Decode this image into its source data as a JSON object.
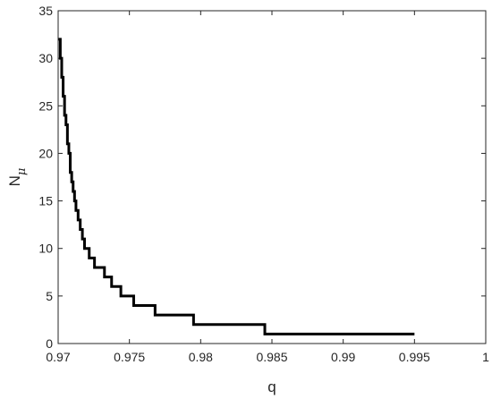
{
  "chart_data": {
    "type": "line",
    "title": "",
    "xlabel": "q",
    "ylabel": {
      "main": "N",
      "sub": "μ"
    },
    "xlim": [
      0.97,
      1.0
    ],
    "ylim": [
      0,
      35
    ],
    "x_ticks": [
      0.97,
      0.975,
      0.98,
      0.985,
      0.99,
      0.995,
      1.0
    ],
    "x_tick_labels": [
      "0.97",
      "0.975",
      "0.98",
      "0.985",
      "0.99",
      "0.995",
      "1"
    ],
    "y_ticks": [
      0,
      5,
      10,
      15,
      20,
      25,
      30,
      35
    ],
    "y_tick_labels": [
      "0",
      "5",
      "10",
      "15",
      "20",
      "25",
      "30",
      "35"
    ],
    "grid": false,
    "box": true,
    "line_color": "#000000",
    "series": [
      {
        "step": true,
        "x": [
          0.97,
          0.97015,
          0.97025,
          0.97035,
          0.97045,
          0.97055,
          0.97065,
          0.97075,
          0.97085,
          0.97095,
          0.97105,
          0.97115,
          0.97125,
          0.9714,
          0.97155,
          0.9717,
          0.97185,
          0.972,
          0.97218,
          0.97235,
          0.97255,
          0.97285,
          0.97325,
          0.97375,
          0.9744,
          0.9753,
          0.9768,
          0.9795,
          0.9845,
          0.995
        ],
        "y": [
          32,
          30,
          28,
          26,
          24,
          23,
          21,
          20,
          18,
          17,
          16,
          15,
          14,
          13,
          12,
          11,
          10,
          10,
          9,
          9,
          8,
          8,
          7,
          6,
          5,
          4,
          3,
          2,
          1,
          1
        ]
      }
    ]
  }
}
